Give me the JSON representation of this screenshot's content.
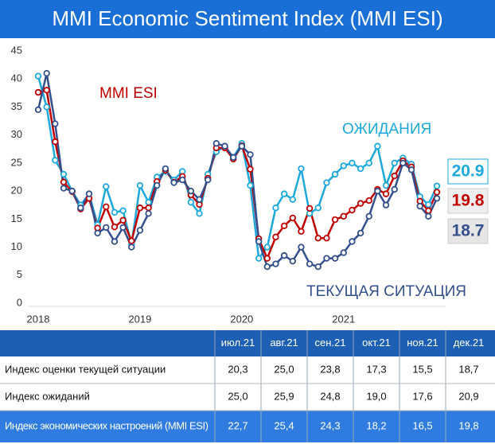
{
  "chart_data": {
    "type": "line",
    "title": "MMI Economic Sentiment Index (MMI ESI)",
    "categories": [
      "2018",
      null,
      null,
      null,
      null,
      null,
      null,
      null,
      null,
      null,
      null,
      null,
      "2019",
      null,
      null,
      null,
      null,
      null,
      null,
      null,
      null,
      null,
      null,
      null,
      "2020",
      null,
      null,
      null,
      null,
      null,
      null,
      null,
      null,
      null,
      null,
      null,
      "2021",
      null,
      null,
      null,
      null,
      null,
      null,
      null,
      null,
      null,
      null,
      null
    ],
    "ylim": [
      0,
      45
    ],
    "yticks": [
      0,
      5,
      10,
      15,
      20,
      25,
      30,
      35,
      40,
      45
    ],
    "grid": false,
    "series": [
      {
        "name": "ОЖИДАНИЯ",
        "color": "#1ea9dc",
        "values": [
          40.5,
          35,
          25.5,
          23,
          20,
          17.5,
          19.5,
          14,
          20.8,
          16.2,
          16.5,
          10.5,
          21,
          18,
          22.5,
          23.5,
          22,
          23.5,
          18,
          16,
          23,
          27,
          28,
          26,
          28.5,
          21,
          8,
          10,
          17,
          19.5,
          18.5,
          24,
          16,
          17,
          21.5,
          23,
          24.5,
          25,
          24,
          25,
          28,
          21,
          25.0,
          25.9,
          24.8,
          19.0,
          17.6,
          20.9
        ]
      },
      {
        "name": "MMI ESI",
        "color": "#c00000",
        "values": [
          37.6,
          38,
          28.8,
          21.6,
          19.9,
          16.8,
          18.7,
          13.4,
          17.2,
          13.6,
          14.8,
          11.1,
          17,
          17,
          21.7,
          23.7,
          21.6,
          22.6,
          19.3,
          17.6,
          22.3,
          27.7,
          27.7,
          25.7,
          28.1,
          23.9,
          11.5,
          8,
          11.8,
          13.8,
          15.2,
          12.8,
          16.9,
          11.6,
          11.6,
          14.9,
          15.5,
          16.6,
          17.8,
          18.3,
          20.3,
          19.5,
          22.7,
          25.4,
          24.3,
          18.2,
          16.5,
          19.8
        ]
      },
      {
        "name": "ТЕКУЩАЯ СИТУАЦИЯ",
        "color": "#34508c",
        "values": [
          34.5,
          41,
          32,
          20.5,
          20,
          17,
          19.5,
          12.5,
          13.5,
          11,
          13.5,
          10,
          13,
          16,
          21,
          24,
          21.5,
          22,
          20,
          18.5,
          22,
          28.5,
          28,
          26,
          28,
          26.5,
          11,
          6.5,
          7,
          8.5,
          7.5,
          10,
          7,
          6.5,
          8,
          8,
          9,
          11,
          12.5,
          15.5,
          20,
          17.5,
          20.3,
          25.0,
          23.8,
          17.3,
          15.5,
          18.7
        ]
      }
    ]
  },
  "table": {
    "columns": [
      "июл.21",
      "авг.21",
      "сен.21",
      "окт.21",
      "ноя.21",
      "дек.21"
    ],
    "rows": [
      {
        "label": "Индекс оценки текущей ситуации",
        "values": [
          "20,3",
          "25,0",
          "23,8",
          "17,3",
          "15,5",
          "18,7"
        ]
      },
      {
        "label": "Индекс ожиданий",
        "values": [
          "25,0",
          "25,9",
          "24,8",
          "19,0",
          "17,6",
          "20,9"
        ]
      },
      {
        "label": "Индекс экономических настроений (MMI ESI)",
        "values": [
          "22,7",
          "25,4",
          "24,3",
          "18,2",
          "16,5",
          "19,8"
        ]
      }
    ]
  }
}
